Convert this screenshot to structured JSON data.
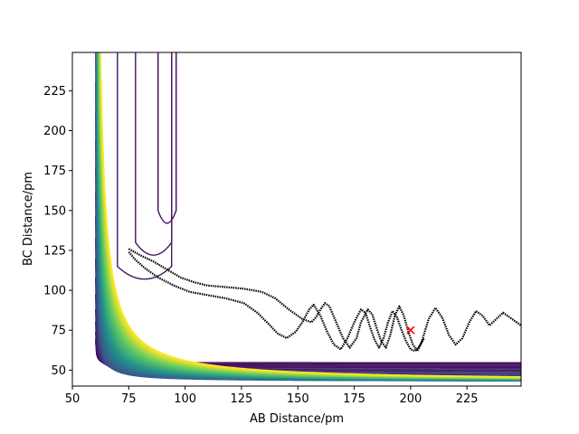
{
  "chart_data": {
    "type": "contour",
    "xlabel": "AB Distance/pm",
    "ylabel": "BC Distance/pm",
    "xlim": [
      50,
      249
    ],
    "ylim": [
      40,
      249
    ],
    "x_ticks": [
      50,
      75,
      100,
      125,
      150,
      175,
      200,
      225
    ],
    "y_ticks": [
      50,
      75,
      100,
      125,
      150,
      175,
      200,
      225
    ],
    "grid": false,
    "legend": "none",
    "colormap": [
      "#440154",
      "#3b528b",
      "#21918c",
      "#5ec962",
      "#fde725"
    ],
    "contours": {
      "n_levels": 60,
      "x_wall": 60,
      "y_wall": 43,
      "valley_x": 92,
      "valley_y": 72
    },
    "trajectory": {
      "color": "#000000",
      "points": [
        [
          75,
          126
        ],
        [
          80,
          122
        ],
        [
          86,
          118
        ],
        [
          92,
          113
        ],
        [
          98,
          108
        ],
        [
          104,
          105
        ],
        [
          110,
          103
        ],
        [
          118,
          102
        ],
        [
          126,
          101
        ],
        [
          134,
          99
        ],
        [
          140,
          95
        ],
        [
          146,
          88
        ],
        [
          152,
          82
        ],
        [
          156,
          80
        ],
        [
          158,
          83
        ],
        [
          160,
          88
        ],
        [
          162,
          92
        ],
        [
          164,
          90
        ],
        [
          167,
          80
        ],
        [
          170,
          70
        ],
        [
          173,
          64
        ],
        [
          176,
          70
        ],
        [
          178,
          80
        ],
        [
          181,
          88
        ],
        [
          183,
          85
        ],
        [
          185,
          76
        ],
        [
          187,
          68
        ],
        [
          189,
          64
        ],
        [
          191,
          72
        ],
        [
          193,
          84
        ],
        [
          195,
          90
        ],
        [
          197,
          84
        ],
        [
          199,
          74
        ],
        [
          201,
          66
        ],
        [
          203,
          62
        ],
        [
          205,
          68
        ],
        [
          208,
          82
        ],
        [
          211,
          89
        ],
        [
          214,
          83
        ],
        [
          217,
          72
        ],
        [
          220,
          66
        ],
        [
          223,
          70
        ],
        [
          226,
          80
        ],
        [
          229,
          87
        ],
        [
          232,
          84
        ],
        [
          235,
          78
        ],
        [
          238,
          82
        ],
        [
          241,
          86
        ],
        [
          245,
          82
        ],
        [
          249,
          78
        ]
      ],
      "return_points": [
        [
          75,
          124
        ],
        [
          78,
          119
        ],
        [
          82,
          114
        ],
        [
          88,
          108
        ],
        [
          95,
          103
        ],
        [
          102,
          99
        ],
        [
          110,
          97
        ],
        [
          118,
          95
        ],
        [
          126,
          92
        ],
        [
          132,
          86
        ],
        [
          137,
          79
        ],
        [
          141,
          73
        ],
        [
          145,
          70
        ],
        [
          149,
          74
        ],
        [
          152,
          80
        ],
        [
          155,
          88
        ],
        [
          157,
          91
        ],
        [
          160,
          84
        ],
        [
          163,
          74
        ],
        [
          166,
          66
        ],
        [
          169,
          63
        ],
        [
          172,
          70
        ],
        [
          175,
          80
        ],
        [
          178,
          88
        ],
        [
          180,
          86
        ],
        [
          182,
          77
        ],
        [
          184,
          69
        ],
        [
          186,
          64
        ],
        [
          188,
          70
        ],
        [
          190,
          80
        ],
        [
          192,
          87
        ],
        [
          194,
          83
        ],
        [
          196,
          75
        ],
        [
          198,
          68
        ],
        [
          200,
          63
        ],
        [
          202,
          62
        ],
        [
          204,
          65
        ],
        [
          206,
          70
        ]
      ]
    },
    "marker": {
      "x": 200,
      "y": 75,
      "symbol": "x",
      "color": "#ff0000"
    }
  }
}
